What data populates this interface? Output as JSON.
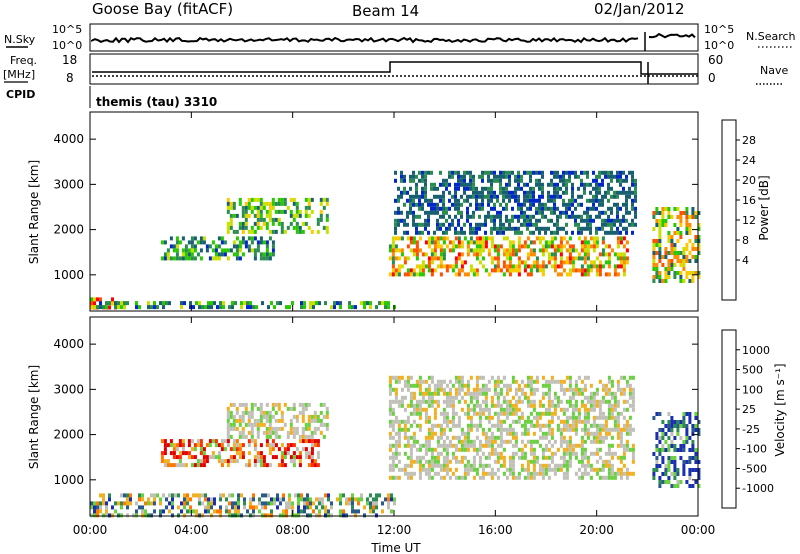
{
  "header": {
    "station": "Goose Bay (fitACF)",
    "beam": "Beam 14",
    "date": "02/Jan/2012"
  },
  "status_panel": {
    "nsky_label": "N.Sky",
    "nsearch_label": "N.Search",
    "noise_ticks": [
      "10^5",
      "10^0"
    ],
    "freq_label": "Freq.",
    "freq_unit": "[MHz]",
    "freq_ticks": [
      "18",
      "8"
    ],
    "nave_label": "Nave",
    "nave_ticks": [
      "60",
      "0"
    ],
    "cpid_label": "CPID",
    "cpid_value": "themis (tau) 3310"
  },
  "chart_data": [
    {
      "type": "heatmap",
      "title": "",
      "ylabel": "Slant Range [km]",
      "xlabel": "",
      "x_ticks": [
        "00:00",
        "04:00",
        "08:00",
        "12:00",
        "16:00",
        "20:00",
        "00:00"
      ],
      "y_ticks": [
        1000,
        2000,
        3000,
        4000
      ],
      "ylim": [
        200,
        4600
      ],
      "colorbar": {
        "label": "Power [dB]",
        "ticks": [
          "28",
          "24",
          "20",
          "16",
          "12",
          "8",
          "4"
        ],
        "colors": [
          "#ff0000",
          "#ff5000",
          "#ff8c00",
          "#ffc800",
          "#c8e000",
          "#28c800",
          "#2a8c50",
          "#186070",
          "#0028c8"
        ]
      },
      "echo_regions": [
        {
          "t0": 0.0,
          "t1": 1.4,
          "r0": 280,
          "r1": 500,
          "c": 2,
          "s": 3
        },
        {
          "t0": 0.0,
          "t1": 12.0,
          "r0": 250,
          "r1": 420,
          "c": 6,
          "s": 2
        },
        {
          "t0": 2.8,
          "t1": 7.2,
          "r0": 1400,
          "r1": 1850,
          "c": 6,
          "s": 2
        },
        {
          "t0": 5.4,
          "t1": 9.4,
          "r0": 1950,
          "r1": 2700,
          "c": 5,
          "s": 2
        },
        {
          "t0": 11.8,
          "t1": 21.2,
          "r0": 1050,
          "r1": 1850,
          "c": 3,
          "s": 3
        },
        {
          "t0": 12.0,
          "t1": 21.5,
          "r0": 1900,
          "r1": 3300,
          "c": 7,
          "s": 1
        },
        {
          "t0": 22.2,
          "t1": 24.0,
          "r0": 900,
          "r1": 2500,
          "c": 4,
          "s": 3
        }
      ]
    },
    {
      "type": "heatmap",
      "title": "",
      "ylabel": "Slant Range [km]",
      "xlabel": "Time UT",
      "x_ticks": [
        "00:00",
        "04:00",
        "08:00",
        "12:00",
        "16:00",
        "20:00",
        "00:00"
      ],
      "y_ticks": [
        1000,
        2000,
        3000,
        4000
      ],
      "ylim": [
        200,
        4600
      ],
      "colorbar": {
        "label": "Velocity [m s⁻¹]",
        "ticks": [
          "1000",
          "500",
          "100",
          "25",
          "-25",
          "-100",
          "-500",
          "-1000"
        ],
        "colors": [
          "#1a2fb0",
          "#2a5a8c",
          "#2a8c50",
          "#6ad040",
          "#c0c0b8",
          "#f0b020",
          "#ff7800",
          "#ff3000",
          "#e00000"
        ]
      },
      "echo_regions": [
        {
          "t0": 0.0,
          "t1": 12.0,
          "r0": 250,
          "r1": 700,
          "c": 3,
          "s": 3
        },
        {
          "t0": 2.8,
          "t1": 9.0,
          "r0": 1300,
          "r1": 1900,
          "c": 6,
          "s": 3
        },
        {
          "t0": 5.4,
          "t1": 9.4,
          "r0": 1950,
          "r1": 2700,
          "c": 4,
          "s": 1
        },
        {
          "t0": 11.8,
          "t1": 21.5,
          "r0": 1050,
          "r1": 3300,
          "c": 4,
          "s": 1
        },
        {
          "t0": 22.2,
          "t1": 24.0,
          "r0": 900,
          "r1": 2500,
          "c": 1,
          "s": 3
        }
      ]
    }
  ]
}
